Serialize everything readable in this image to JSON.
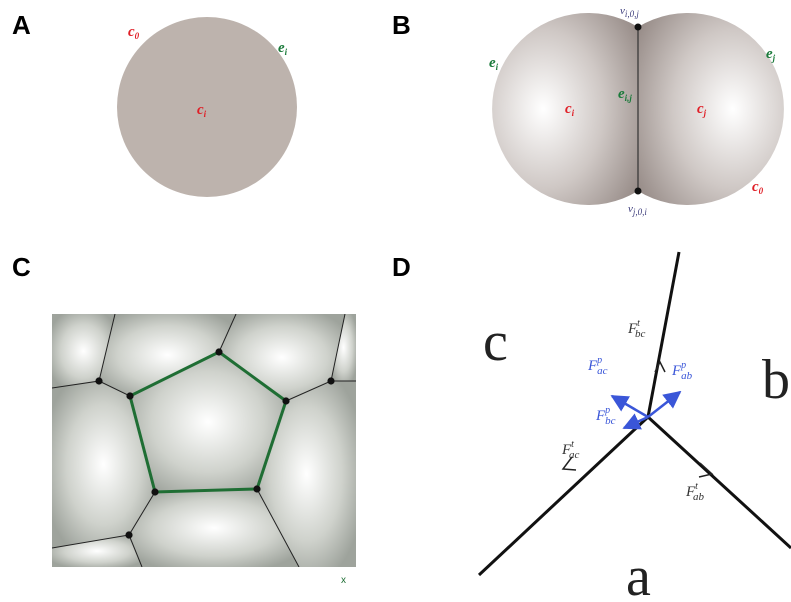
{
  "panels": {
    "A": {
      "letter": "A",
      "c0": "c",
      "c0_sub": "0",
      "ei": "e",
      "ei_sub": "i",
      "ci": "c",
      "ci_sub": "i"
    },
    "B": {
      "letter": "B",
      "vtop": "v",
      "vtop_sub": "i,0,j",
      "vbot": "v",
      "vbot_sub": "j,0,i",
      "ei": "e",
      "ei_sub": "i",
      "ej": "e",
      "ej_sub": "j",
      "eij": "e",
      "eij_sub": "i,j",
      "ci": "c",
      "ci_sub": "i",
      "cj": "c",
      "cj_sub": "j",
      "c0": "c",
      "c0_sub": "0"
    },
    "C": {
      "letter": "C",
      "mark": "x"
    },
    "D": {
      "letter": "D",
      "region_a": "a",
      "region_b": "b",
      "region_c": "c",
      "f_bc_t": "F",
      "f_bc_t_sub": "bc",
      "f_bc_t_sup": "t",
      "f_ac_p": "F",
      "f_ac_p_sub": "ac",
      "f_ac_p_sup": "p",
      "f_ab_p": "F",
      "f_ab_p_sub": "ab",
      "f_ab_p_sup": "p",
      "f_bc_p": "F",
      "f_bc_p_sub": "bc",
      "f_bc_p_sup": "p",
      "f_ac_t": "F",
      "f_ac_t_sub": "ac",
      "f_ac_t_sup": "t",
      "f_ab_t": "F",
      "f_ab_t_sub": "ab",
      "f_ab_t_sup": "t"
    }
  },
  "colors": {
    "cell_fill": "#bdb3ad",
    "label_red": "#e01e26",
    "label_green": "#1a7a3a",
    "edge_green": "#1f6e34",
    "force_blue": "#3a56d8"
  }
}
